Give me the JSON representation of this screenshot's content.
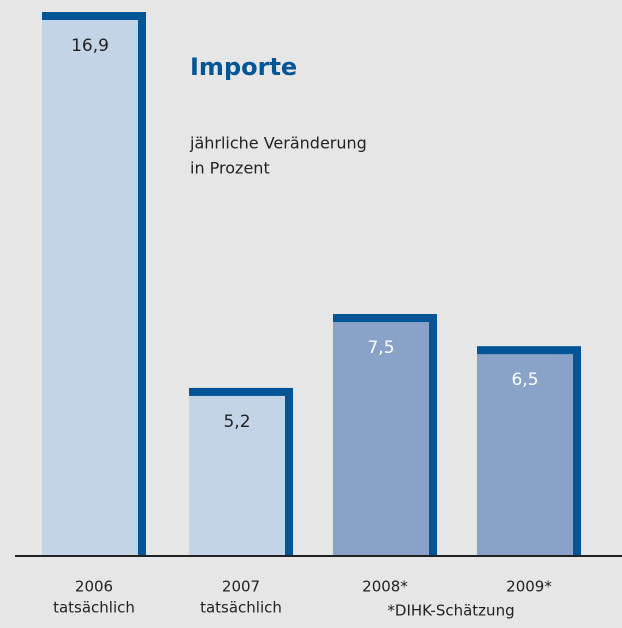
{
  "chart_data": {
    "type": "bar",
    "title": "Importe",
    "subtitle": [
      "jährliche Veränderung",
      "in Prozent"
    ],
    "categories": [
      "2006",
      "2007",
      "2008*",
      "2009*"
    ],
    "sublabels": [
      "tatsächlich",
      "tatsächlich"
    ],
    "footnote": "*DIHK-Schätzung",
    "values": [
      16.9,
      5.2,
      7.5,
      6.5
    ],
    "value_labels": [
      "16,9",
      "5,2",
      "7,5",
      "6,5"
    ],
    "colors": [
      "#c4d4e7",
      "#c4d4e7",
      "#89a2c8",
      "#89a2c8"
    ],
    "label_colors": [
      "#222222",
      "#222222",
      "#ffffff",
      "#ffffff"
    ],
    "edge_color": "#005596",
    "ylim": [
      0,
      16.9
    ]
  }
}
